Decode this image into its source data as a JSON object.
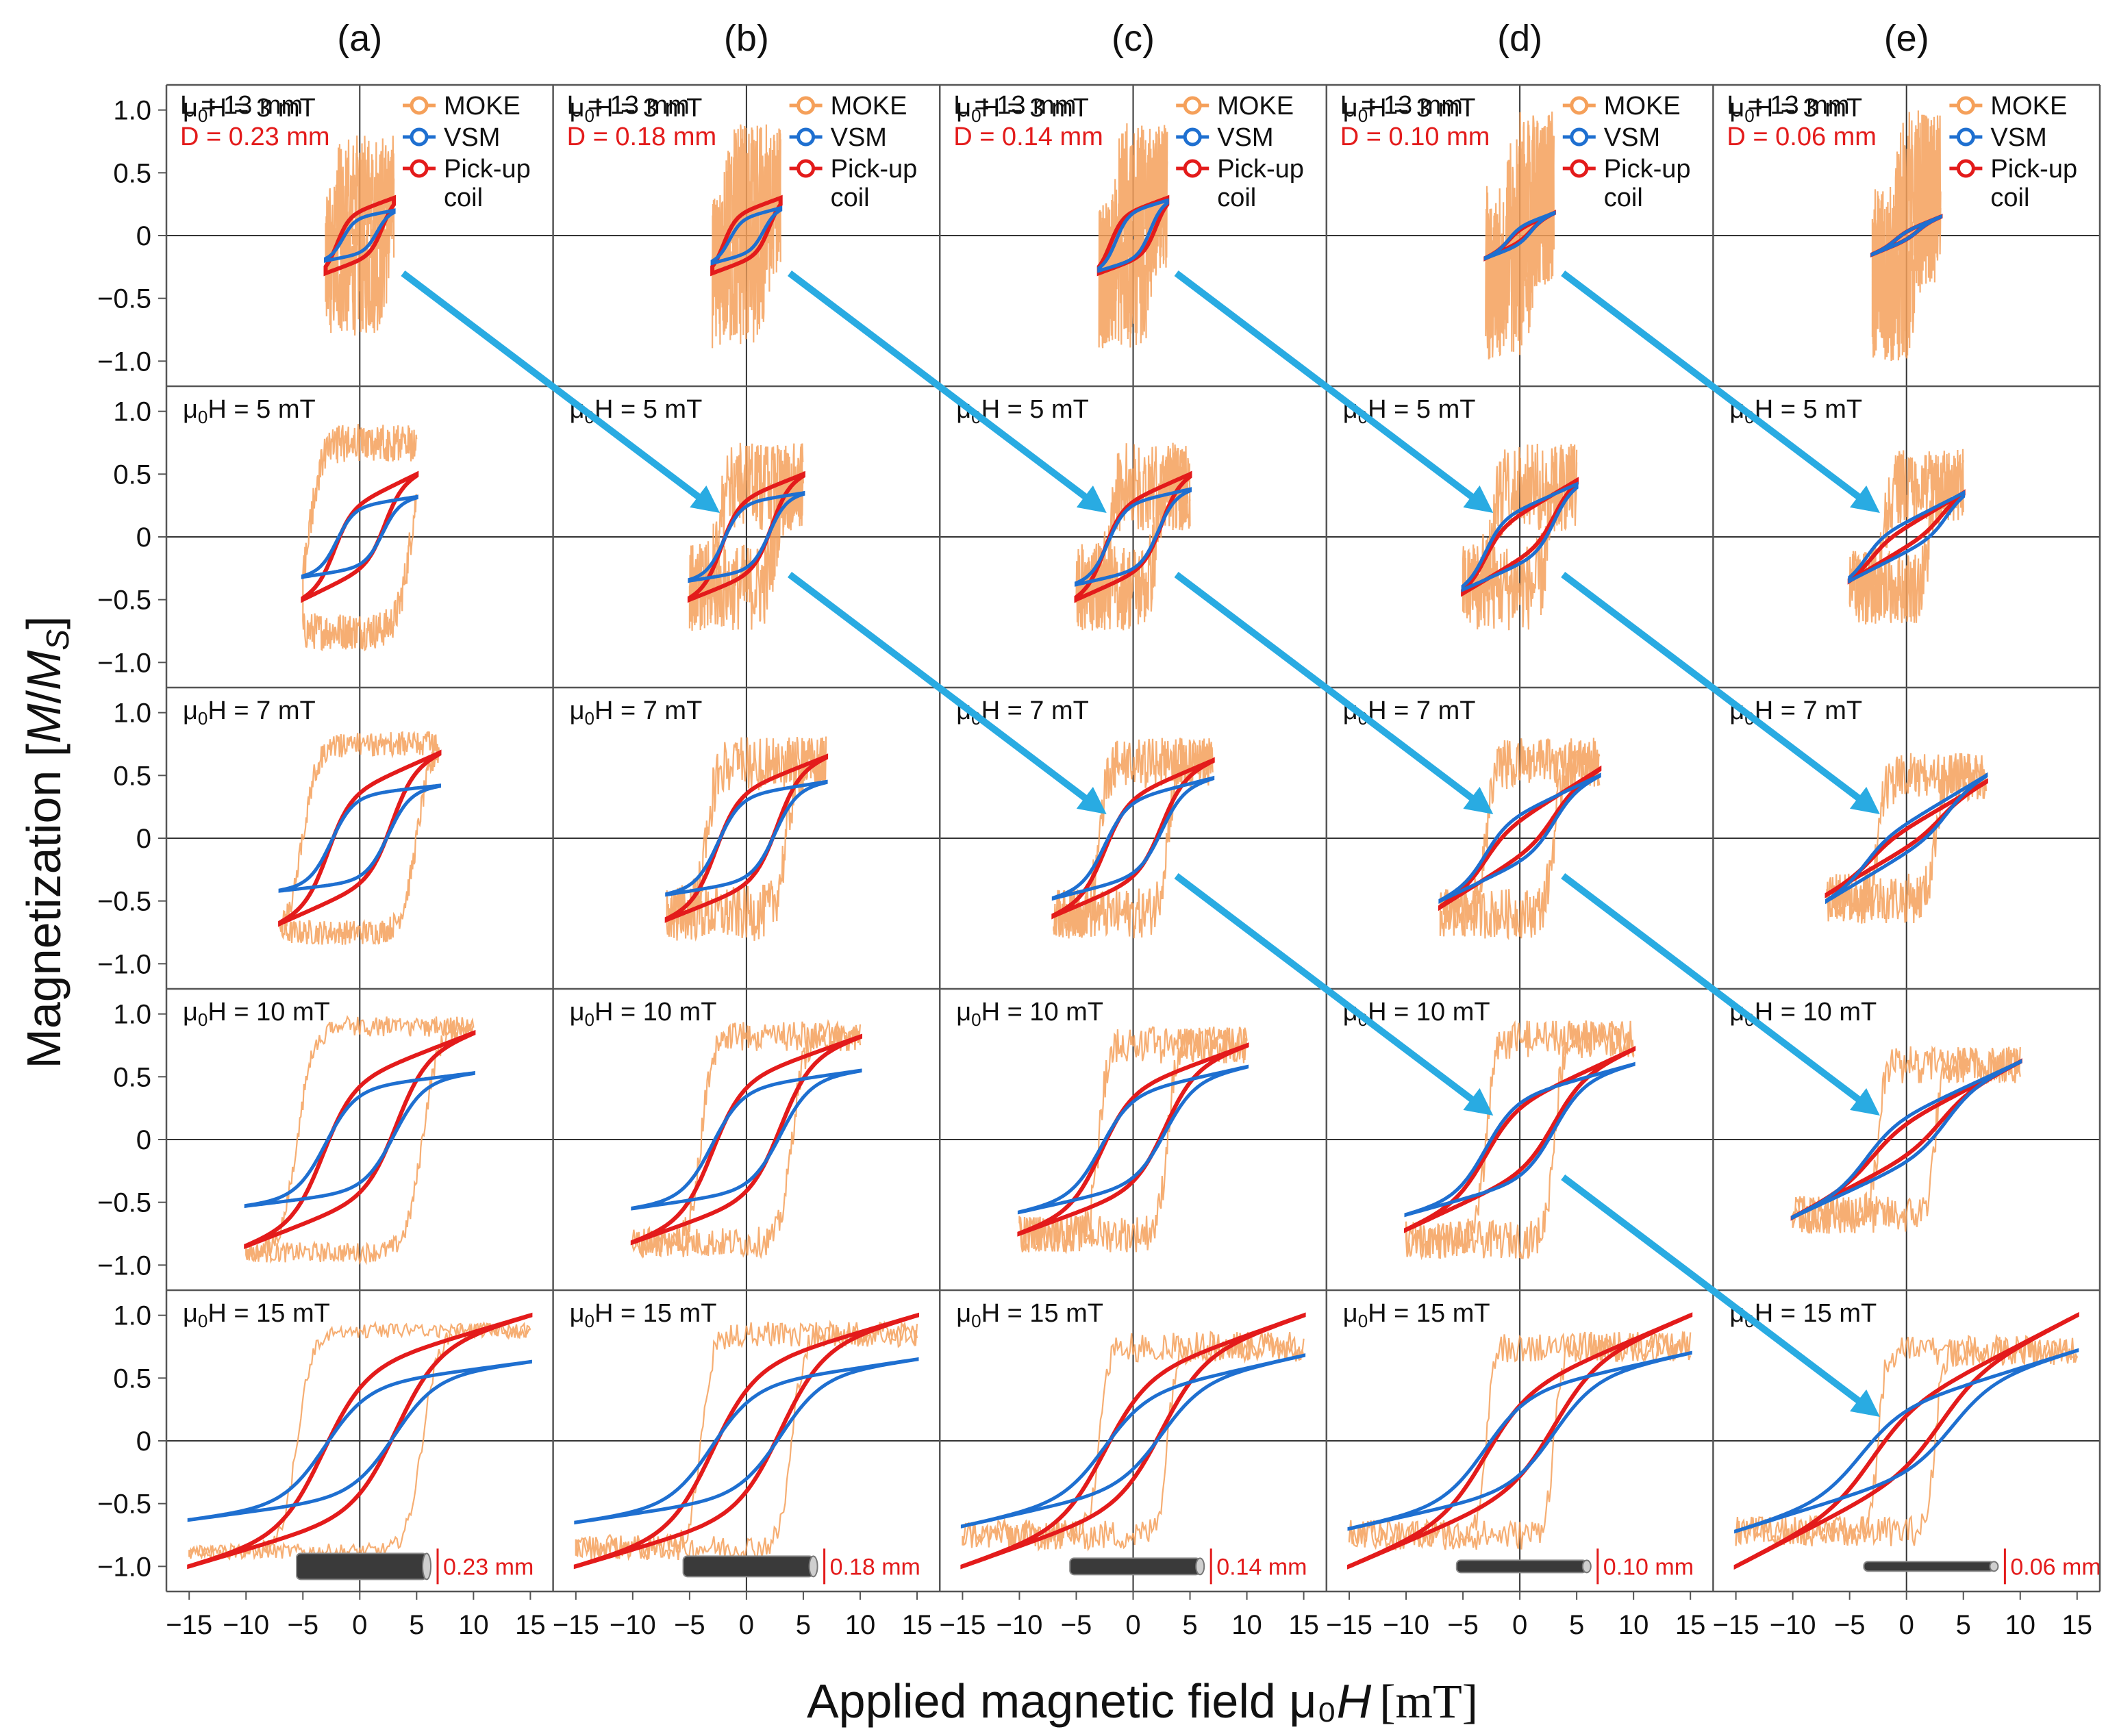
{
  "chart_data": {
    "type": "line",
    "title": "",
    "xlabel": "Applied magnetic field  μ0H [mT]",
    "xlabel_prefix": "Applied magnetic field  μ₀",
    "xlabel_italic": "H",
    "xlabel_unit": "[mT]",
    "ylabel": "Magnetization [M/Ms]",
    "ylabel_prefix": "Magnetization [",
    "ylabel_M": "M",
    "ylabel_slash": "/",
    "ylabel_Ms": "M",
    "ylabel_sub": "S",
    "ylabel_suffix": "]",
    "xlim": [
      -17,
      17
    ],
    "ylim": [
      -1.2,
      1.2
    ],
    "xticks": [
      -15,
      -10,
      -5,
      0,
      5,
      10,
      15
    ],
    "xtick_labels": [
      "−15",
      "−10",
      "−5",
      "0",
      "5",
      "10",
      "15"
    ],
    "yticks": [
      1.0,
      0.5,
      0,
      -0.5,
      -1.0
    ],
    "ytick_labels": [
      "1.0",
      "0.5",
      "0",
      "−0.5",
      "−1.0"
    ],
    "legend": {
      "position": "top-right",
      "entries": [
        {
          "name": "MOKE",
          "color": "#F5A05A"
        },
        {
          "name": "VSM",
          "color": "#1E6FD0"
        },
        {
          "name": "Pick-up",
          "name2": "coil",
          "color": "#E31B1B"
        }
      ]
    },
    "columns": [
      {
        "label": "(a)",
        "L": "L = 13 mm",
        "D": "D = 0.23 mm",
        "wire_label": "0.23 mm",
        "wire_len": 7.0
      },
      {
        "label": "(b)",
        "L": "L = 13 mm",
        "D": "D = 0.18 mm",
        "wire_label": "0.18 mm",
        "wire_len": 7.0
      },
      {
        "label": "(c)",
        "L": "L = 13 mm",
        "D": "D = 0.14 mm",
        "wire_label": "0.14 mm",
        "wire_len": 7.0
      },
      {
        "label": "(d)",
        "L": "L = 13 mm",
        "D": "D = 0.10 mm",
        "wire_label": "0.10 mm",
        "wire_len": 7.0
      },
      {
        "label": "(e)",
        "L": "L = 13 mm",
        "D": "D = 0.06 mm",
        "wire_label": "0.06 mm",
        "wire_len": 7.0
      }
    ],
    "rows": [
      {
        "field": 3,
        "label": "μ0H = 3 mT"
      },
      {
        "field": 5,
        "label": "μ0H = 5 mT"
      },
      {
        "field": 7,
        "label": "μ0H = 7 mT"
      },
      {
        "field": 10,
        "label": "μ0H = 10 mT"
      },
      {
        "field": 15,
        "label": "μ0H = 15 mT"
      }
    ],
    "loops": [
      [
        {
          "moke": {
            "ms": 0.3,
            "hc": 2.5,
            "n": 0.5
          },
          "vsm": {
            "ms": 0.2,
            "hc": 1.5,
            "rem": 0.15
          },
          "pick": {
            "ms": 0.3,
            "hc": 2.0,
            "rem": 0.2
          }
        },
        {
          "moke": {
            "ms": 0.75,
            "hc": 4.5,
            "n": 0.15
          },
          "vsm": {
            "ms": 0.32,
            "hc": 2.0,
            "rem": 0.25
          },
          "pick": {
            "ms": 0.5,
            "hc": 2.2,
            "rem": 0.28
          }
        },
        {
          "moke": {
            "ms": 0.75,
            "hc": 5.0,
            "n": 0.1
          },
          "vsm": {
            "ms": 0.42,
            "hc": 2.5,
            "rem": 0.35
          },
          "pick": {
            "ms": 0.68,
            "hc": 2.8,
            "rem": 0.4
          }
        },
        {
          "moke": {
            "ms": 0.9,
            "hc": 5.5,
            "n": 0.08
          },
          "vsm": {
            "ms": 0.53,
            "hc": 3.0,
            "rem": 0.42
          },
          "pick": {
            "ms": 0.85,
            "hc": 3.2,
            "rem": 0.5
          }
        },
        {
          "moke": {
            "ms": 0.88,
            "hc": 5.5,
            "n": 0.06
          },
          "vsm": {
            "ms": 0.63,
            "hc": 3.0,
            "rem": 0.45
          },
          "pick": {
            "ms": 1.0,
            "hc": 3.2,
            "rem": 0.6
          }
        }
      ],
      [
        {
          "moke": {
            "ms": 0.3,
            "hc": 1.8,
            "n": 0.6
          },
          "vsm": {
            "ms": 0.22,
            "hc": 1.5,
            "rem": 0.15
          },
          "pick": {
            "ms": 0.3,
            "hc": 2.0,
            "rem": 0.2
          }
        },
        {
          "moke": {
            "ms": 0.4,
            "hc": 2.5,
            "n": 0.35
          },
          "vsm": {
            "ms": 0.35,
            "hc": 2.0,
            "rem": 0.28
          },
          "pick": {
            "ms": 0.5,
            "hc": 2.2,
            "rem": 0.32
          }
        },
        {
          "moke": {
            "ms": 0.6,
            "hc": 3.5,
            "n": 0.22
          },
          "vsm": {
            "ms": 0.45,
            "hc": 2.5,
            "rem": 0.35
          },
          "pick": {
            "ms": 0.65,
            "hc": 2.7,
            "rem": 0.4
          }
        },
        {
          "moke": {
            "ms": 0.82,
            "hc": 4.0,
            "n": 0.12
          },
          "vsm": {
            "ms": 0.55,
            "hc": 3.0,
            "rem": 0.42
          },
          "pick": {
            "ms": 0.82,
            "hc": 3.0,
            "rem": 0.5
          }
        },
        {
          "moke": {
            "ms": 0.85,
            "hc": 4.0,
            "n": 0.1
          },
          "vsm": {
            "ms": 0.65,
            "hc": 3.0,
            "rem": 0.45
          },
          "pick": {
            "ms": 1.0,
            "hc": 3.0,
            "rem": 0.6
          }
        }
      ],
      [
        {
          "moke": {
            "ms": 0.3,
            "hc": 1.5,
            "n": 0.6
          },
          "vsm": {
            "ms": 0.28,
            "hc": 1.5,
            "rem": 0.2
          },
          "pick": {
            "ms": 0.3,
            "hc": 2.0,
            "rem": 0.2
          }
        },
        {
          "moke": {
            "ms": 0.4,
            "hc": 2.0,
            "n": 0.35
          },
          "vsm": {
            "ms": 0.38,
            "hc": 2.2,
            "rem": 0.28
          },
          "pick": {
            "ms": 0.5,
            "hc": 2.5,
            "rem": 0.3
          }
        },
        {
          "moke": {
            "ms": 0.6,
            "hc": 3.0,
            "n": 0.2
          },
          "vsm": {
            "ms": 0.48,
            "hc": 2.5,
            "rem": 0.32
          },
          "pick": {
            "ms": 0.62,
            "hc": 2.5,
            "rem": 0.35
          }
        },
        {
          "moke": {
            "ms": 0.75,
            "hc": 3.0,
            "n": 0.15
          },
          "vsm": {
            "ms": 0.58,
            "hc": 2.8,
            "rem": 0.38
          },
          "pick": {
            "ms": 0.75,
            "hc": 2.8,
            "rem": 0.42
          }
        },
        {
          "moke": {
            "ms": 0.75,
            "hc": 3.0,
            "n": 0.12
          },
          "vsm": {
            "ms": 0.68,
            "hc": 2.5,
            "rem": 0.38
          },
          "pick": {
            "ms": 1.0,
            "hc": 2.5,
            "rem": 0.52
          }
        }
      ],
      [
        {
          "moke": {
            "ms": 0.3,
            "hc": 1.0,
            "n": 0.7
          },
          "vsm": {
            "ms": 0.18,
            "hc": 1.0,
            "rem": 0.08
          },
          "pick": {
            "ms": 0.18,
            "hc": 1.0,
            "rem": 0.06
          }
        },
        {
          "moke": {
            "ms": 0.4,
            "hc": 2.5,
            "n": 0.35
          },
          "vsm": {
            "ms": 0.42,
            "hc": 3.0,
            "rem": 0.22
          },
          "pick": {
            "ms": 0.45,
            "hc": 3.0,
            "rem": 0.18
          }
        },
        {
          "moke": {
            "ms": 0.6,
            "hc": 3.0,
            "n": 0.2
          },
          "vsm": {
            "ms": 0.5,
            "hc": 3.0,
            "rem": 0.2
          },
          "pick": {
            "ms": 0.55,
            "hc": 3.0,
            "rem": 0.15
          }
        },
        {
          "moke": {
            "ms": 0.8,
            "hc": 3.0,
            "n": 0.15
          },
          "vsm": {
            "ms": 0.6,
            "hc": 3.0,
            "rem": 0.35
          },
          "pick": {
            "ms": 0.72,
            "hc": 3.0,
            "rem": 0.3
          }
        },
        {
          "moke": {
            "ms": 0.75,
            "hc": 3.0,
            "n": 0.12
          },
          "vsm": {
            "ms": 0.7,
            "hc": 3.0,
            "rem": 0.4
          },
          "pick": {
            "ms": 1.0,
            "hc": 3.0,
            "rem": 0.42
          }
        }
      ],
      [
        {
          "moke": {
            "ms": 0.3,
            "hc": 0.8,
            "n": 0.7
          },
          "vsm": {
            "ms": 0.15,
            "hc": 1.0,
            "rem": 0.04
          },
          "pick": {
            "ms": 0.15,
            "hc": 1.0,
            "rem": 0.04
          }
        },
        {
          "moke": {
            "ms": 0.4,
            "hc": 2.0,
            "n": 0.3
          },
          "vsm": {
            "ms": 0.35,
            "hc": 3.5,
            "rem": 0.12
          },
          "pick": {
            "ms": 0.35,
            "hc": 3.0,
            "rem": 0.08
          }
        },
        {
          "moke": {
            "ms": 0.48,
            "hc": 2.5,
            "n": 0.2
          },
          "vsm": {
            "ms": 0.5,
            "hc": 3.5,
            "rem": 0.12
          },
          "pick": {
            "ms": 0.45,
            "hc": 3.0,
            "rem": 0.08
          }
        },
        {
          "moke": {
            "ms": 0.6,
            "hc": 2.5,
            "n": 0.15
          },
          "vsm": {
            "ms": 0.62,
            "hc": 3.5,
            "rem": 0.2
          },
          "pick": {
            "ms": 0.62,
            "hc": 3.0,
            "rem": 0.15
          }
        },
        {
          "moke": {
            "ms": 0.72,
            "hc": 2.5,
            "n": 0.12
          },
          "vsm": {
            "ms": 0.72,
            "hc": 4.0,
            "rem": 0.3
          },
          "pick": {
            "ms": 1.0,
            "hc": 3.0,
            "rem": 0.3
          }
        }
      ]
    ],
    "arrows": [
      {
        "from": [
          0,
          0
        ],
        "to": [
          1,
          1
        ]
      },
      {
        "from": [
          1,
          0
        ],
        "to": [
          2,
          1
        ]
      },
      {
        "from": [
          2,
          0
        ],
        "to": [
          3,
          1
        ]
      },
      {
        "from": [
          3,
          0
        ],
        "to": [
          4,
          1
        ]
      },
      {
        "from": [
          1,
          1
        ],
        "to": [
          2,
          2
        ]
      },
      {
        "from": [
          2,
          1
        ],
        "to": [
          3,
          2
        ]
      },
      {
        "from": [
          3,
          1
        ],
        "to": [
          4,
          2
        ]
      },
      {
        "from": [
          2,
          2
        ],
        "to": [
          3,
          3
        ]
      },
      {
        "from": [
          3,
          2
        ],
        "to": [
          4,
          3
        ]
      },
      {
        "from": [
          3,
          3
        ],
        "to": [
          4,
          4
        ]
      }
    ],
    "colors": {
      "moke": "#F5A05A",
      "vsm": "#1E6FD0",
      "pick": "#E31B1B",
      "arrow": "#29ABE2",
      "frame": "#555555",
      "text": "#111111",
      "d_text": "#E31B1B"
    }
  }
}
